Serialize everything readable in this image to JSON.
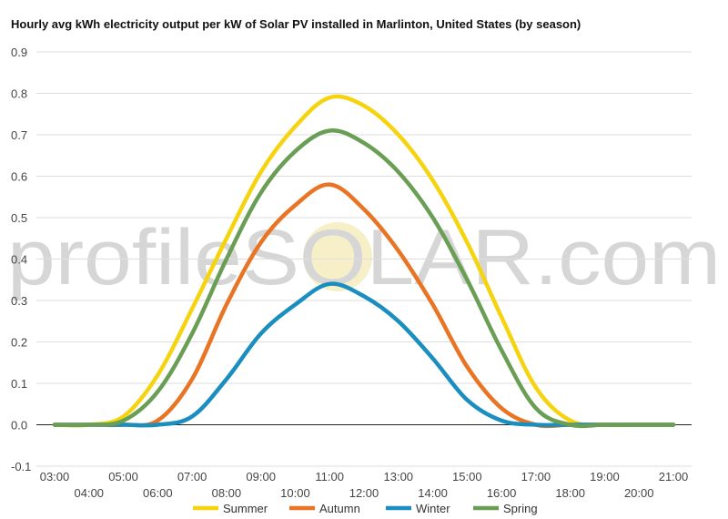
{
  "chart_data": {
    "type": "line",
    "title": "Hourly avg kWh electricity output per kW of Solar PV installed in Marlinton, United States (by season)",
    "xlabel": "",
    "ylabel": "",
    "ylim": [
      -0.1,
      0.9
    ],
    "y_ticks": [
      "-0.1",
      "0.0",
      "0.1",
      "0.2",
      "0.3",
      "0.4",
      "0.5",
      "0.6",
      "0.7",
      "0.8",
      "0.9"
    ],
    "x_ticks": [
      "03:00",
      "04:00",
      "05:00",
      "06:00",
      "07:00",
      "08:00",
      "09:00",
      "10:00",
      "11:00",
      "12:00",
      "13:00",
      "14:00",
      "15:00",
      "16:00",
      "17:00",
      "18:00",
      "19:00",
      "20:00",
      "21:00"
    ],
    "grid": true,
    "legend_position": "bottom",
    "watermark": "profileSOLAR.com",
    "series": [
      {
        "name": "Summer",
        "color": "#f5d40f",
        "values": [
          0,
          0,
          0.02,
          0.12,
          0.28,
          0.45,
          0.61,
          0.72,
          0.79,
          0.77,
          0.7,
          0.59,
          0.44,
          0.26,
          0.09,
          0.01,
          0,
          0,
          0
        ]
      },
      {
        "name": "Autumn",
        "color": "#e87424",
        "values": [
          0,
          0,
          0,
          0.01,
          0.11,
          0.29,
          0.44,
          0.53,
          0.58,
          0.52,
          0.42,
          0.29,
          0.14,
          0.04,
          0,
          0,
          0,
          0,
          0
        ]
      },
      {
        "name": "Winter",
        "color": "#1a8fbf",
        "values": [
          0,
          0,
          0,
          0,
          0.02,
          0.11,
          0.22,
          0.29,
          0.34,
          0.31,
          0.25,
          0.16,
          0.06,
          0.01,
          0,
          0,
          0,
          0,
          0
        ]
      },
      {
        "name": "Spring",
        "color": "#6a9e55",
        "values": [
          0,
          0,
          0.01,
          0.08,
          0.22,
          0.4,
          0.56,
          0.66,
          0.71,
          0.68,
          0.61,
          0.5,
          0.35,
          0.18,
          0.04,
          0,
          0,
          0,
          0
        ]
      }
    ]
  }
}
